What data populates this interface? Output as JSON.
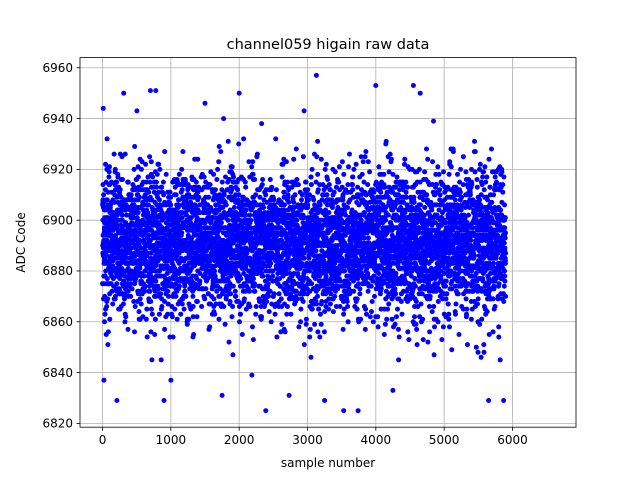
{
  "chart_data": {
    "type": "scatter",
    "title": "channel059 higain raw data",
    "xlabel": "sample number",
    "ylabel": "ADC Code",
    "xlim": [
      -330,
      6930
    ],
    "ylim": [
      6818.5,
      6964
    ],
    "xticks": [
      0,
      1000,
      2000,
      3000,
      4000,
      5000,
      6000
    ],
    "yticks": [
      6820,
      6840,
      6860,
      6880,
      6900,
      6920,
      6940,
      6960
    ],
    "xtick_labels": [
      "0",
      "1000",
      "2000",
      "3000",
      "4000",
      "5000",
      "6000"
    ],
    "ytick_labels": [
      "6820",
      "6840",
      "6860",
      "6880",
      "6900",
      "6920",
      "6940",
      "6960"
    ],
    "grid": true,
    "marker_color": "#0000ff",
    "series": [
      {
        "n_points": 5900,
        "x_range": [
          0,
          5900
        ],
        "y_center": 6891,
        "y_spread": 14,
        "notable_points": [
          {
            "x": 3130,
            "y": 6957
          },
          {
            "x": 4000,
            "y": 6953
          },
          {
            "x": 4550,
            "y": 6953
          },
          {
            "x": 2000,
            "y": 6950
          },
          {
            "x": 310,
            "y": 6950
          },
          {
            "x": 700,
            "y": 6951
          },
          {
            "x": 780,
            "y": 6951
          },
          {
            "x": 1500,
            "y": 6946
          },
          {
            "x": 2950,
            "y": 6943
          },
          {
            "x": 4650,
            "y": 6950
          },
          {
            "x": 210,
            "y": 6829
          },
          {
            "x": 900,
            "y": 6829
          },
          {
            "x": 1750,
            "y": 6831
          },
          {
            "x": 2390,
            "y": 6825
          },
          {
            "x": 2730,
            "y": 6831
          },
          {
            "x": 3250,
            "y": 6829
          },
          {
            "x": 3530,
            "y": 6825
          },
          {
            "x": 3740,
            "y": 6825
          },
          {
            "x": 4250,
            "y": 6833
          },
          {
            "x": 5650,
            "y": 6829
          },
          {
            "x": 5870,
            "y": 6829
          },
          {
            "x": 20,
            "y": 6837
          },
          {
            "x": 1000,
            "y": 6837
          }
        ]
      }
    ]
  }
}
